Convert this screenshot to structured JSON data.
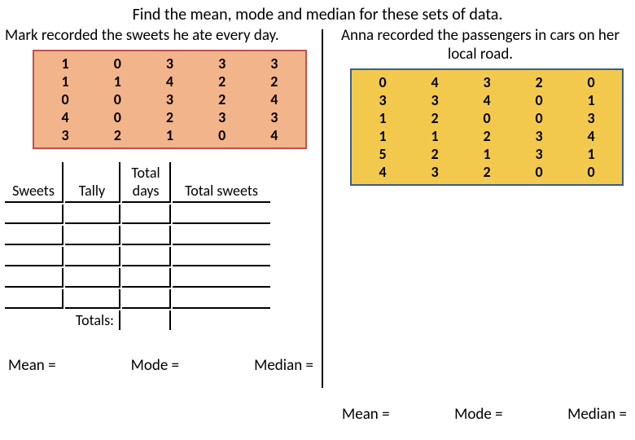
{
  "title": "Find the mean, mode and median for these sets of data.",
  "divider_color": "#000000",
  "left": {
    "subtitle": "Mark recorded the sweets he ate every day.",
    "box": {
      "border_color": "#c0504d",
      "background_color": "#f2b48a",
      "columns": [
        [
          "1",
          "1",
          "0",
          "4",
          "3"
        ],
        [
          "0",
          "1",
          "0",
          "0",
          "2"
        ],
        [
          "3",
          "4",
          "3",
          "2",
          "1"
        ],
        [
          "3",
          "2",
          "2",
          "3",
          "0"
        ],
        [
          "3",
          "2",
          "4",
          "3",
          "4"
        ]
      ],
      "text_color": "#000000",
      "font_weight": "bold"
    },
    "tally": {
      "headers": {
        "sweets": "Sweets",
        "tally": "Tally",
        "days": "Total days",
        "total": "Total sweets"
      },
      "blank_rows": 5,
      "totals_label": "Totals:"
    },
    "stats": {
      "mean": "Mean =",
      "mode": "Mode =",
      "median": "Median ="
    }
  },
  "right": {
    "subtitle": "Anna recorded the passengers in cars on her local road.",
    "box": {
      "border_color": "#385d8a",
      "background_color": "#f2c94c",
      "columns": [
        [
          "0",
          "3",
          "1",
          "1",
          "5",
          "4"
        ],
        [
          "4",
          "3",
          "2",
          "1",
          "2",
          "3"
        ],
        [
          "3",
          "4",
          "0",
          "2",
          "1",
          "2"
        ],
        [
          "2",
          "0",
          "0",
          "3",
          "3",
          "0"
        ],
        [
          "0",
          "1",
          "3",
          "4",
          "1",
          "0"
        ]
      ],
      "text_color": "#000000",
      "font_weight": "bold"
    },
    "stats": {
      "mean": "Mean =",
      "mode": "Mode =",
      "median": "Median ="
    }
  }
}
